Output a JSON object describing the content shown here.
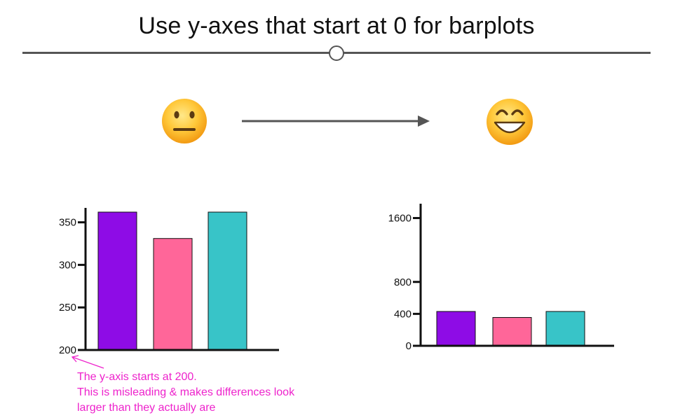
{
  "title": "Use y-axes that start at 0 for barplots",
  "icons": {
    "before": "neutral-face-icon",
    "after": "grinning-face-icon",
    "transition": "right-arrow-icon"
  },
  "annotation": {
    "lines": [
      "The y-axis starts at 200.",
      "This is misleading & makes differences look",
      "larger than they actually are"
    ],
    "color": "#ee22cc"
  },
  "chart_data": [
    {
      "type": "bar",
      "categories": [
        "",
        "",
        ""
      ],
      "values": [
        362,
        331,
        362
      ],
      "colors": [
        "#8e0ce6",
        "#ff6699",
        "#38c4c8"
      ],
      "ylim": [
        200,
        362
      ],
      "yticks": [
        200,
        250,
        300,
        350
      ],
      "xlabel": "",
      "ylabel": "",
      "grid": false
    },
    {
      "type": "bar",
      "categories": [
        "",
        "",
        ""
      ],
      "values": [
        430,
        355,
        430
      ],
      "colors": [
        "#8e0ce6",
        "#ff6699",
        "#38c4c8"
      ],
      "ylim": [
        0,
        1600
      ],
      "yticks": [
        0,
        400,
        800,
        1600
      ],
      "xlabel": "",
      "ylabel": "",
      "grid": false
    }
  ]
}
